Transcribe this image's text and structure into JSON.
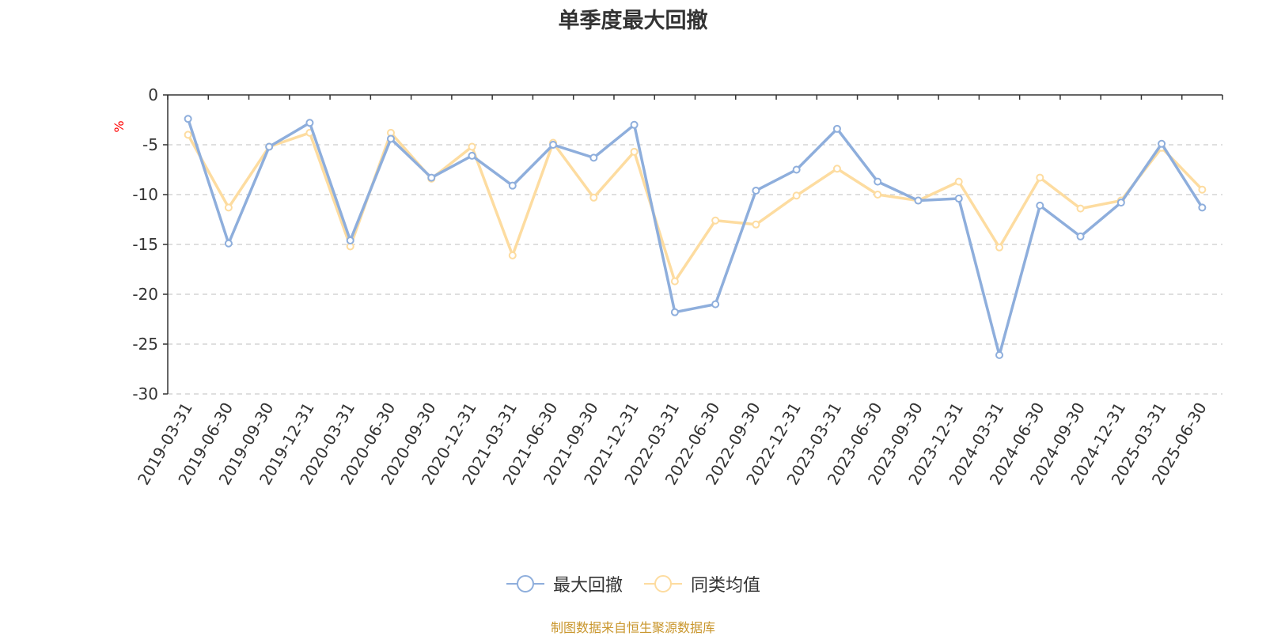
{
  "chart_data": {
    "type": "line",
    "title": "单季度最大回撤",
    "ylabel": "%",
    "ylim": [
      -30,
      0
    ],
    "yticks": [
      "0",
      "-5",
      "-10",
      "-15",
      "-20",
      "-25",
      "-30"
    ],
    "grid": true,
    "legend_placement": "bottom",
    "categories": [
      "2019-03-31",
      "2019-06-30",
      "2019-09-30",
      "2019-12-31",
      "2020-03-31",
      "2020-06-30",
      "2020-09-30",
      "2020-12-31",
      "2021-03-31",
      "2021-06-30",
      "2021-09-30",
      "2021-12-31",
      "2022-03-31",
      "2022-06-30",
      "2022-09-30",
      "2022-12-31",
      "2023-03-31",
      "2023-06-30",
      "2023-09-30",
      "2023-12-31",
      "2024-03-31",
      "2024-06-30",
      "2024-09-30",
      "2024-12-31",
      "2025-03-31",
      "2025-06-30"
    ],
    "series": [
      {
        "name": "最大回撤",
        "color": "#8eaedc",
        "values": [
          -2.4,
          -14.9,
          -5.2,
          -2.8,
          -14.6,
          -4.4,
          -8.3,
          -6.1,
          -9.1,
          -5.0,
          -6.3,
          -3.0,
          -21.8,
          -21.0,
          -9.6,
          -7.5,
          -3.4,
          -8.7,
          -10.6,
          -10.4,
          -26.1,
          -11.1,
          -14.2,
          -10.8,
          -4.9,
          -11.3
        ]
      },
      {
        "name": "同类均值",
        "color": "#fddca0",
        "values": [
          -4.0,
          -11.3,
          -5.2,
          -3.8,
          -15.2,
          -3.8,
          -8.4,
          -5.2,
          -16.1,
          -4.8,
          -10.3,
          -5.7,
          -18.7,
          -12.6,
          -13.0,
          -10.1,
          -7.4,
          -10.0,
          -10.6,
          -8.7,
          -15.3,
          -8.3,
          -11.4,
          -10.6,
          -5.3,
          -9.5
        ]
      }
    ]
  },
  "legend": {
    "items": [
      {
        "label": "最大回撤",
        "color": "#8eaedc"
      },
      {
        "label": "同类均值",
        "color": "#fddca0"
      }
    ]
  },
  "footer": {
    "note": "制图数据来自恒生聚源数据库",
    "color": "#c9962c"
  },
  "colors": {
    "axis": "#333333",
    "grid": "#cccccc",
    "ylabel": "#ff0000"
  }
}
